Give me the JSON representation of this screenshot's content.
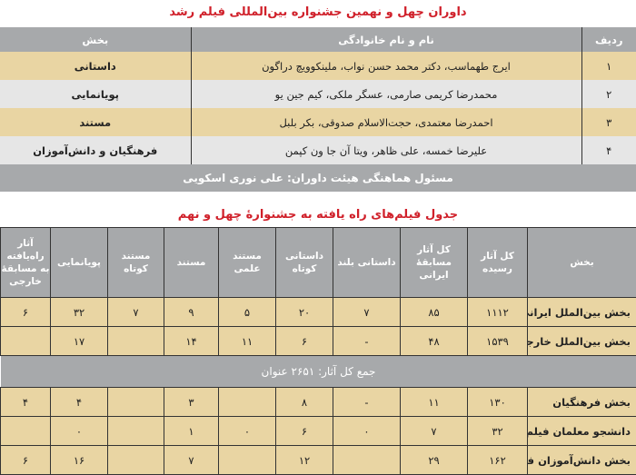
{
  "judges": {
    "title": "داوران چهل و نهمین جشنواره بین‌المللی فیلم رشد",
    "headers": [
      "ردیف",
      "نام و نام خانوادگی",
      "بخش"
    ],
    "rows": [
      {
        "no": "۱",
        "names": "ایرج طهماسب، دکتر محمد حسن نواب، ملینکوویچ دراگون",
        "section": "داستانی"
      },
      {
        "no": "۲",
        "names": "محمدرضا کریمی صارمی، عسگر ملکی، کیم جین یو",
        "section": "پویانمایی"
      },
      {
        "no": "۳",
        "names": "احمدرضا معتمدی، حجت‌الاسلام صدوقی، بکر بلبل",
        "section": "مستند"
      },
      {
        "no": "۴",
        "names": "علیرضا خمسه، علی ظاهر، ویتا آن جا ون کپمن",
        "section": "فرهنگیان و دانش‌آموزان"
      }
    ],
    "coordinator": "مسئول هماهنگی هیئت داوران: علی نوری اسکویی"
  },
  "films": {
    "title": "جدول فیلم‌های راه یافته به جشنوارهٔ چهل و نهم",
    "headers": [
      "بخش",
      "کل آثار رسیده",
      "کل آثار مسابقهٔ ایرانی",
      "داستانی بلند",
      "داستانی کوتاه",
      "مستند علمی",
      "مستند",
      "مستند کوتاه",
      "پویانمایی",
      "آثار راه‌یافته به مسابقهٔ خارجی"
    ],
    "rows_a": [
      [
        "بخش بین‌الملل ایرانی",
        "۱۱۱۲",
        "۸۵",
        "۷",
        "۲۰",
        "۵",
        "۹",
        "۷",
        "۳۲",
        "۶"
      ],
      [
        "بخش بین‌الملل خارجی",
        "۱۵۳۹",
        "۴۸",
        "-",
        "۶",
        "۱۱",
        "۱۴",
        "",
        "۱۷",
        ""
      ]
    ],
    "total": "جمع کل آثار: ۲۶۵۱ عنوان",
    "rows_b": [
      [
        "بخش فرهنگیان",
        "۱۳۰",
        "۱۱",
        "-",
        "۸",
        "",
        "۳",
        "",
        "۴",
        "۴"
      ],
      [
        "دانشجو معلمان فیلم‌ساز",
        "۳۲",
        "۷",
        "۰",
        "۶",
        "۰",
        "۱",
        "",
        "۰",
        ""
      ],
      [
        "بخش دانش‌آموزان فیلم‌ساز",
        "۱۶۲",
        "۲۹",
        "",
        "۱۲",
        "",
        "۷",
        "",
        "۱۶",
        "۶"
      ]
    ]
  }
}
